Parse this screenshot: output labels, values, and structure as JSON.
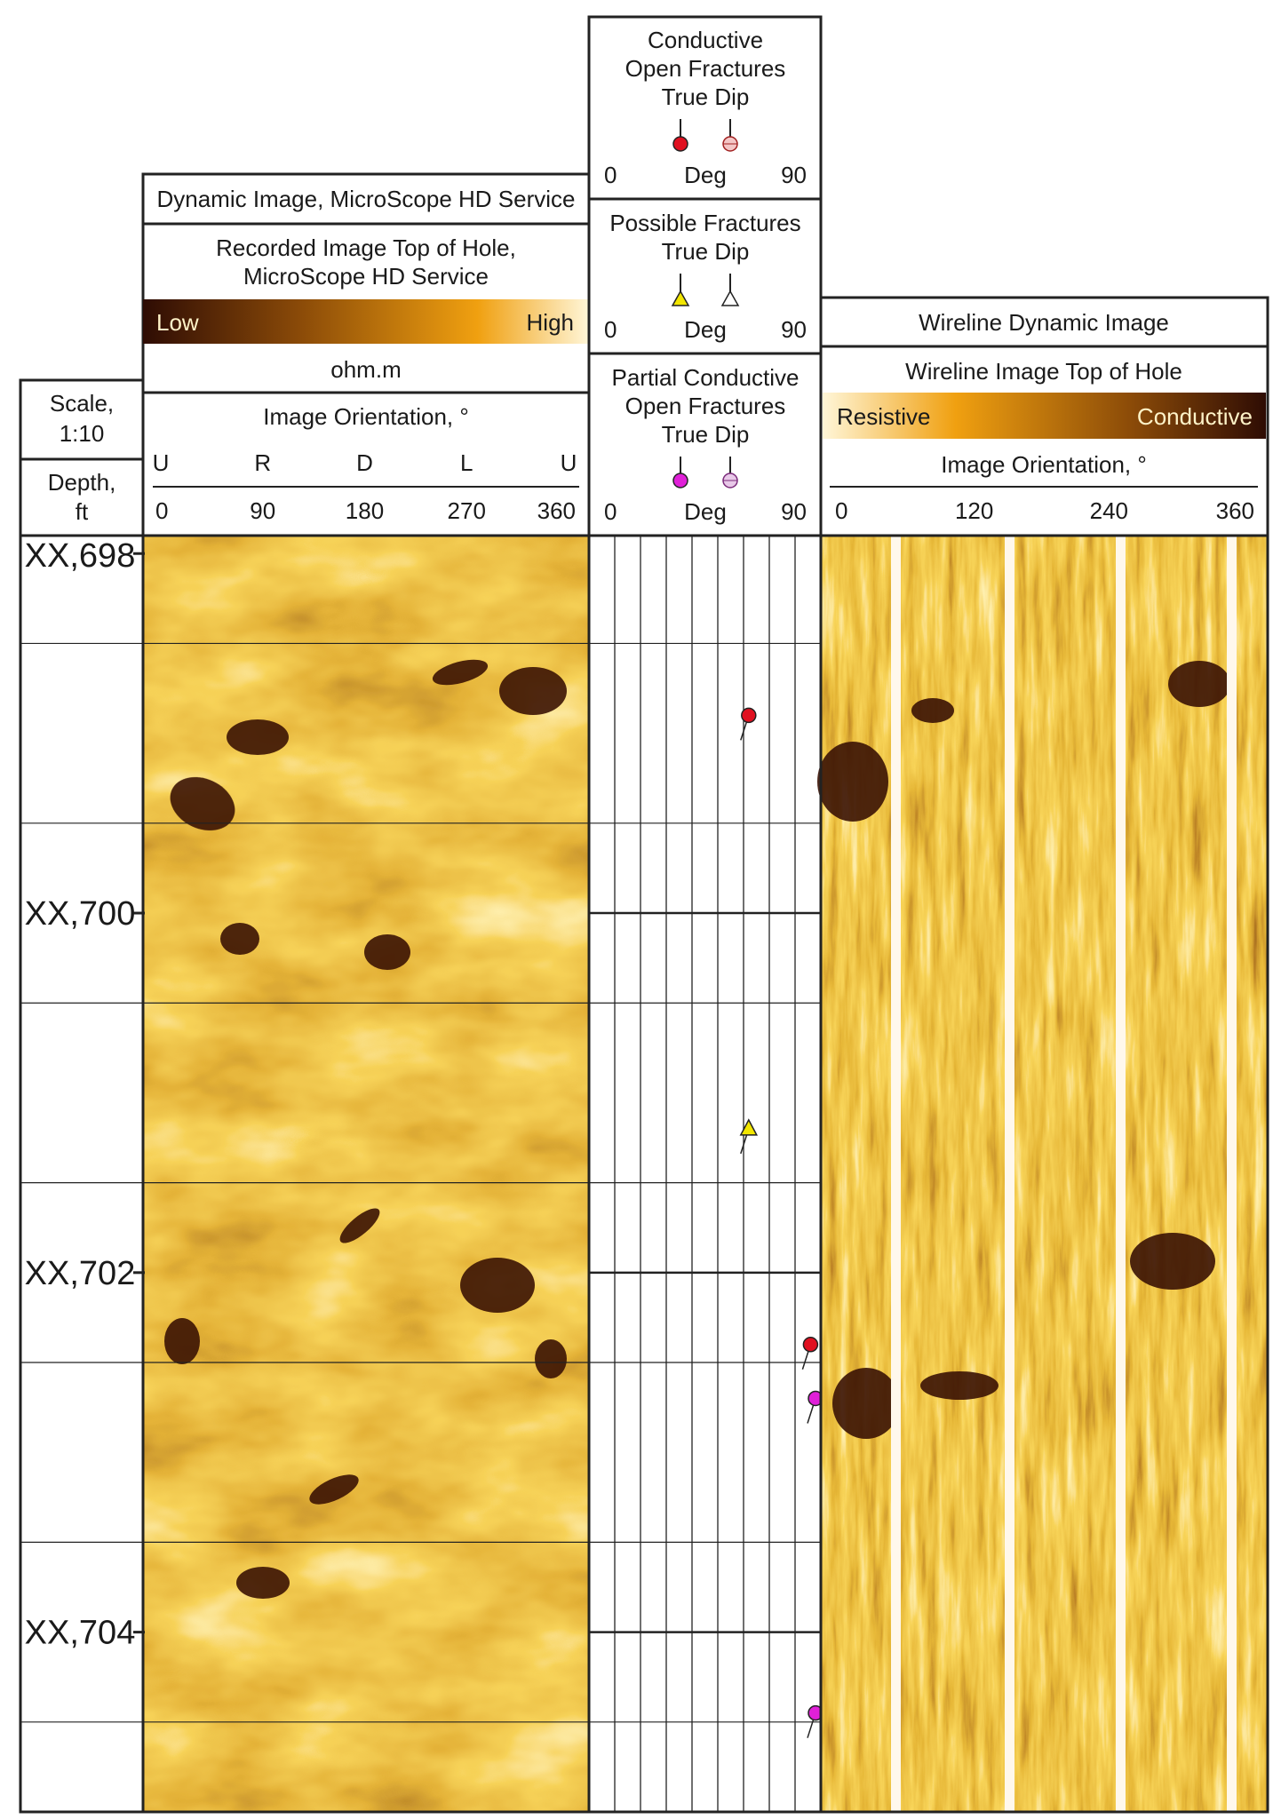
{
  "scale_box": {
    "label_line1": "Scale,",
    "label_line2": "1:10"
  },
  "depth_box": {
    "label_line1": "Depth,",
    "label_line2": "ft"
  },
  "track1": {
    "title": "Dynamic Image, MicroScope HD Service",
    "subtitle_line1": "Recorded Image Top of Hole,",
    "subtitle_line2": "MicroScope HD Service",
    "scale_low": "Low",
    "scale_high": "High",
    "unit": "ohm.m",
    "orientation_label": "Image Orientation, °",
    "compass_labels": [
      "U",
      "R",
      "D",
      "L",
      "U"
    ],
    "ticks": [
      "0",
      "90",
      "180",
      "270",
      "360"
    ]
  },
  "track2": {
    "conductive": {
      "line1": "Conductive",
      "line2": "Open Fractures",
      "line3": "True Dip",
      "min": "0",
      "unit": "Deg",
      "max": "90"
    },
    "possible": {
      "line1": "Possible Fractures",
      "line2": "True Dip",
      "min": "0",
      "unit": "Deg",
      "max": "90"
    },
    "partial": {
      "line1": "Partial Conductive",
      "line2": "Open Fractures",
      "line3": "True Dip",
      "min": "0",
      "unit": "Deg",
      "max": "90"
    }
  },
  "track3": {
    "title": "Wireline Dynamic Image",
    "subtitle": "Wireline Image Top of Hole",
    "scale_left": "Resistive",
    "scale_right": "Conductive",
    "orientation_label": "Image Orientation, °",
    "ticks": [
      "0",
      "120",
      "240",
      "360"
    ]
  },
  "depth_labels": [
    "XX,698",
    "XX,700",
    "XX,702",
    "XX,704"
  ],
  "colors": {
    "conductive_marker": "#e01020",
    "conductive_marker_alt": "#f4c6c6",
    "possible_marker": "#f2e600",
    "possible_marker_alt": "#ffffff",
    "partial_marker": "#e020d8",
    "partial_marker_alt": "#e8c8e8",
    "image_dark": "#3a1204",
    "image_mid": "#c8780e",
    "image_light": "#fff2c4"
  },
  "chart_data": {
    "type": "scatter",
    "x_axis": {
      "label": "Deg",
      "range": [
        0,
        90
      ]
    },
    "y_axis": {
      "label": "Depth, ft",
      "range": [
        697.9,
        705.0
      ],
      "ticks": [
        698,
        700,
        702,
        704
      ],
      "inverted": true
    },
    "series": [
      {
        "name": "Conductive Open Fractures True Dip",
        "marker": "circle",
        "points": [
          {
            "depth": 698.9,
            "dip": 62
          },
          {
            "depth": 702.4,
            "dip": 86
          }
        ]
      },
      {
        "name": "Possible Fractures True Dip",
        "marker": "triangle",
        "points": [
          {
            "depth": 701.2,
            "dip": 62
          }
        ]
      },
      {
        "name": "Partial Conductive Open Fractures True Dip",
        "marker": "circle",
        "points": [
          {
            "depth": 702.7,
            "dip": 89
          },
          {
            "depth": 704.45,
            "dip": 92
          }
        ]
      }
    ]
  }
}
